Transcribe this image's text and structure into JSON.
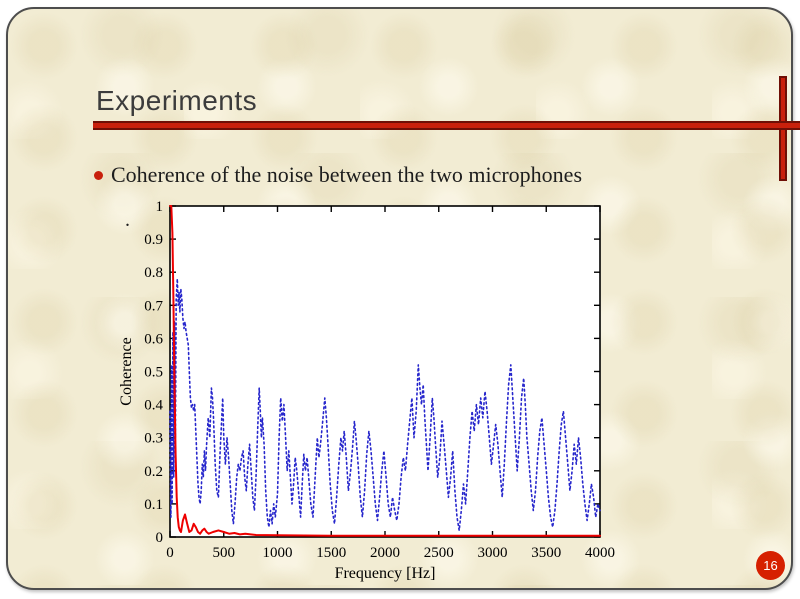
{
  "slide": {
    "title": "Experiments",
    "bullet": {
      "text": "Coherence of the noise between the two microphones"
    },
    "stray_mark": ".",
    "page_number": "16"
  },
  "colors": {
    "slide_background": "#f2ecd3",
    "slide_border": "#4d4d4d",
    "accent_red": "#c8200c",
    "accent_dark_red": "#6e0f06",
    "title_text": "#3c3c3c",
    "body_text": "#1d1d1d",
    "page_badge": "#d62000",
    "chart_red_line": "#ee0000",
    "chart_blue_line": "#2626cc"
  },
  "chart_data": {
    "type": "line",
    "title": "",
    "xlabel": "Frequency [Hz]",
    "ylabel": "Coherence",
    "xlim": [
      0,
      4000
    ],
    "ylim": [
      0,
      1
    ],
    "xticks": [
      0,
      500,
      1000,
      1500,
      2000,
      2500,
      3000,
      3500,
      4000
    ],
    "yticks": [
      0,
      0.1,
      0.2,
      0.3,
      0.4,
      0.5,
      0.6,
      0.7,
      0.8,
      0.9,
      1
    ],
    "grid": false,
    "legend": "none",
    "plot_background": "#ffffff",
    "series": [
      {
        "name": "coherence-blue-dotted",
        "color": "#2626cc",
        "style": "dotted",
        "width": 1.6,
        "points": [
          [
            0,
            0.38
          ],
          [
            8,
            0.06
          ],
          [
            14,
            0.52
          ],
          [
            20,
            0.1
          ],
          [
            27,
            0.62
          ],
          [
            34,
            0.18
          ],
          [
            42,
            0.65
          ],
          [
            50,
            0.3
          ],
          [
            58,
            0.72
          ],
          [
            68,
            0.78
          ],
          [
            76,
            0.7
          ],
          [
            84,
            0.74
          ],
          [
            92,
            0.68
          ],
          [
            100,
            0.75
          ],
          [
            110,
            0.72
          ],
          [
            120,
            0.66
          ],
          [
            130,
            0.63
          ],
          [
            140,
            0.65
          ],
          [
            150,
            0.62
          ],
          [
            160,
            0.6
          ],
          [
            170,
            0.58
          ],
          [
            180,
            0.5
          ],
          [
            190,
            0.42
          ],
          [
            200,
            0.39
          ],
          [
            210,
            0.4
          ],
          [
            220,
            0.38
          ],
          [
            230,
            0.4
          ],
          [
            240,
            0.32
          ],
          [
            250,
            0.24
          ],
          [
            260,
            0.16
          ],
          [
            270,
            0.12
          ],
          [
            280,
            0.1
          ],
          [
            290,
            0.14
          ],
          [
            300,
            0.22
          ],
          [
            310,
            0.18
          ],
          [
            320,
            0.26
          ],
          [
            330,
            0.2
          ],
          [
            340,
            0.28
          ],
          [
            355,
            0.36
          ],
          [
            370,
            0.3
          ],
          [
            385,
            0.45
          ],
          [
            395,
            0.42
          ],
          [
            405,
            0.36
          ],
          [
            420,
            0.22
          ],
          [
            435,
            0.14
          ],
          [
            450,
            0.12
          ],
          [
            465,
            0.25
          ],
          [
            480,
            0.35
          ],
          [
            490,
            0.42
          ],
          [
            500,
            0.3
          ],
          [
            515,
            0.22
          ],
          [
            530,
            0.3
          ],
          [
            545,
            0.24
          ],
          [
            560,
            0.16
          ],
          [
            575,
            0.08
          ],
          [
            590,
            0.04
          ],
          [
            605,
            0.1
          ],
          [
            620,
            0.18
          ],
          [
            635,
            0.22
          ],
          [
            650,
            0.2
          ],
          [
            665,
            0.24
          ],
          [
            680,
            0.26
          ],
          [
            695,
            0.18
          ],
          [
            710,
            0.14
          ],
          [
            725,
            0.22
          ],
          [
            740,
            0.28
          ],
          [
            755,
            0.2
          ],
          [
            770,
            0.12
          ],
          [
            785,
            0.08
          ],
          [
            800,
            0.18
          ],
          [
            815,
            0.32
          ],
          [
            830,
            0.45
          ],
          [
            840,
            0.38
          ],
          [
            850,
            0.3
          ],
          [
            860,
            0.36
          ],
          [
            875,
            0.28
          ],
          [
            890,
            0.14
          ],
          [
            905,
            0.06
          ],
          [
            920,
            0.03
          ],
          [
            935,
            0.08
          ],
          [
            950,
            0.04
          ],
          [
            965,
            0.1
          ],
          [
            980,
            0.06
          ],
          [
            1000,
            0.13
          ],
          [
            1015,
            0.3
          ],
          [
            1030,
            0.42
          ],
          [
            1045,
            0.35
          ],
          [
            1060,
            0.4
          ],
          [
            1075,
            0.3
          ],
          [
            1090,
            0.2
          ],
          [
            1105,
            0.26
          ],
          [
            1120,
            0.18
          ],
          [
            1135,
            0.1
          ],
          [
            1150,
            0.16
          ],
          [
            1165,
            0.24
          ],
          [
            1180,
            0.2
          ],
          [
            1200,
            0.12
          ],
          [
            1215,
            0.06
          ],
          [
            1230,
            0.16
          ],
          [
            1245,
            0.25
          ],
          [
            1260,
            0.2
          ],
          [
            1275,
            0.24
          ],
          [
            1290,
            0.18
          ],
          [
            1310,
            0.1
          ],
          [
            1330,
            0.06
          ],
          [
            1350,
            0.18
          ],
          [
            1370,
            0.3
          ],
          [
            1385,
            0.24
          ],
          [
            1400,
            0.28
          ],
          [
            1420,
            0.35
          ],
          [
            1440,
            0.42
          ],
          [
            1455,
            0.36
          ],
          [
            1470,
            0.28
          ],
          [
            1490,
            0.16
          ],
          [
            1510,
            0.08
          ],
          [
            1530,
            0.04
          ],
          [
            1550,
            0.12
          ],
          [
            1570,
            0.22
          ],
          [
            1590,
            0.3
          ],
          [
            1605,
            0.26
          ],
          [
            1620,
            0.32
          ],
          [
            1640,
            0.24
          ],
          [
            1660,
            0.14
          ],
          [
            1680,
            0.2
          ],
          [
            1700,
            0.28
          ],
          [
            1715,
            0.35
          ],
          [
            1730,
            0.3
          ],
          [
            1750,
            0.22
          ],
          [
            1770,
            0.12
          ],
          [
            1790,
            0.06
          ],
          [
            1810,
            0.14
          ],
          [
            1830,
            0.25
          ],
          [
            1850,
            0.32
          ],
          [
            1870,
            0.26
          ],
          [
            1890,
            0.18
          ],
          [
            1910,
            0.1
          ],
          [
            1930,
            0.05
          ],
          [
            1950,
            0.12
          ],
          [
            1970,
            0.2
          ],
          [
            1990,
            0.26
          ],
          [
            2010,
            0.18
          ],
          [
            2030,
            0.1
          ],
          [
            2050,
            0.06
          ],
          [
            2070,
            0.12
          ],
          [
            2090,
            0.08
          ],
          [
            2110,
            0.05
          ],
          [
            2130,
            0.1
          ],
          [
            2150,
            0.18
          ],
          [
            2170,
            0.24
          ],
          [
            2190,
            0.2
          ],
          [
            2210,
            0.28
          ],
          [
            2230,
            0.35
          ],
          [
            2250,
            0.42
          ],
          [
            2270,
            0.3
          ],
          [
            2290,
            0.38
          ],
          [
            2310,
            0.52
          ],
          [
            2325,
            0.45
          ],
          [
            2340,
            0.4
          ],
          [
            2355,
            0.46
          ],
          [
            2370,
            0.36
          ],
          [
            2385,
            0.28
          ],
          [
            2400,
            0.2
          ],
          [
            2420,
            0.3
          ],
          [
            2440,
            0.42
          ],
          [
            2455,
            0.36
          ],
          [
            2470,
            0.28
          ],
          [
            2490,
            0.18
          ],
          [
            2510,
            0.24
          ],
          [
            2530,
            0.35
          ],
          [
            2550,
            0.28
          ],
          [
            2570,
            0.2
          ],
          [
            2590,
            0.12
          ],
          [
            2610,
            0.18
          ],
          [
            2630,
            0.26
          ],
          [
            2650,
            0.14
          ],
          [
            2670,
            0.06
          ],
          [
            2690,
            0.02
          ],
          [
            2710,
            0.08
          ],
          [
            2730,
            0.16
          ],
          [
            2750,
            0.1
          ],
          [
            2770,
            0.2
          ],
          [
            2790,
            0.3
          ],
          [
            2810,
            0.38
          ],
          [
            2830,
            0.32
          ],
          [
            2850,
            0.4
          ],
          [
            2870,
            0.34
          ],
          [
            2890,
            0.42
          ],
          [
            2910,
            0.36
          ],
          [
            2930,
            0.44
          ],
          [
            2950,
            0.38
          ],
          [
            2970,
            0.3
          ],
          [
            2990,
            0.22
          ],
          [
            3010,
            0.28
          ],
          [
            3030,
            0.34
          ],
          [
            3050,
            0.28
          ],
          [
            3070,
            0.2
          ],
          [
            3090,
            0.12
          ],
          [
            3110,
            0.22
          ],
          [
            3130,
            0.35
          ],
          [
            3150,
            0.46
          ],
          [
            3170,
            0.52
          ],
          [
            3185,
            0.44
          ],
          [
            3200,
            0.36
          ],
          [
            3215,
            0.28
          ],
          [
            3230,
            0.2
          ],
          [
            3250,
            0.3
          ],
          [
            3270,
            0.42
          ],
          [
            3290,
            0.48
          ],
          [
            3305,
            0.4
          ],
          [
            3320,
            0.3
          ],
          [
            3340,
            0.22
          ],
          [
            3360,
            0.14
          ],
          [
            3380,
            0.08
          ],
          [
            3400,
            0.14
          ],
          [
            3420,
            0.24
          ],
          [
            3440,
            0.32
          ],
          [
            3460,
            0.36
          ],
          [
            3480,
            0.28
          ],
          [
            3500,
            0.2
          ],
          [
            3520,
            0.12
          ],
          [
            3540,
            0.06
          ],
          [
            3560,
            0.03
          ],
          [
            3580,
            0.08
          ],
          [
            3600,
            0.16
          ],
          [
            3620,
            0.26
          ],
          [
            3640,
            0.34
          ],
          [
            3660,
            0.38
          ],
          [
            3680,
            0.3
          ],
          [
            3700,
            0.22
          ],
          [
            3720,
            0.14
          ],
          [
            3740,
            0.2
          ],
          [
            3760,
            0.28
          ],
          [
            3780,
            0.22
          ],
          [
            3800,
            0.3
          ],
          [
            3820,
            0.24
          ],
          [
            3840,
            0.16
          ],
          [
            3860,
            0.1
          ],
          [
            3880,
            0.05
          ],
          [
            3900,
            0.1
          ],
          [
            3920,
            0.16
          ],
          [
            3940,
            0.12
          ],
          [
            3960,
            0.06
          ],
          [
            3980,
            0.1
          ],
          [
            4000,
            0.08
          ]
        ]
      },
      {
        "name": "coherence-red-solid",
        "color": "#ee0000",
        "style": "solid",
        "width": 2,
        "points": [
          [
            0,
            1.0
          ],
          [
            12,
            1.0
          ],
          [
            22,
            0.92
          ],
          [
            32,
            0.72
          ],
          [
            42,
            0.45
          ],
          [
            52,
            0.25
          ],
          [
            62,
            0.12
          ],
          [
            72,
            0.06
          ],
          [
            82,
            0.03
          ],
          [
            92,
            0.02
          ],
          [
            102,
            0.015
          ],
          [
            120,
            0.05
          ],
          [
            140,
            0.068
          ],
          [
            160,
            0.04
          ],
          [
            180,
            0.015
          ],
          [
            200,
            0.02
          ],
          [
            220,
            0.04
          ],
          [
            240,
            0.03
          ],
          [
            260,
            0.015
          ],
          [
            280,
            0.01
          ],
          [
            300,
            0.02
          ],
          [
            320,
            0.025
          ],
          [
            340,
            0.015
          ],
          [
            360,
            0.01
          ],
          [
            400,
            0.015
          ],
          [
            450,
            0.02
          ],
          [
            500,
            0.015
          ],
          [
            550,
            0.01
          ],
          [
            600,
            0.012
          ],
          [
            650,
            0.008
          ],
          [
            700,
            0.01
          ],
          [
            750,
            0.008
          ],
          [
            800,
            0.006
          ],
          [
            1000,
            0.005
          ],
          [
            1500,
            0.004
          ],
          [
            2000,
            0.004
          ],
          [
            2500,
            0.004
          ],
          [
            3000,
            0.004
          ],
          [
            3500,
            0.004
          ],
          [
            4000,
            0.004
          ]
        ]
      }
    ]
  }
}
